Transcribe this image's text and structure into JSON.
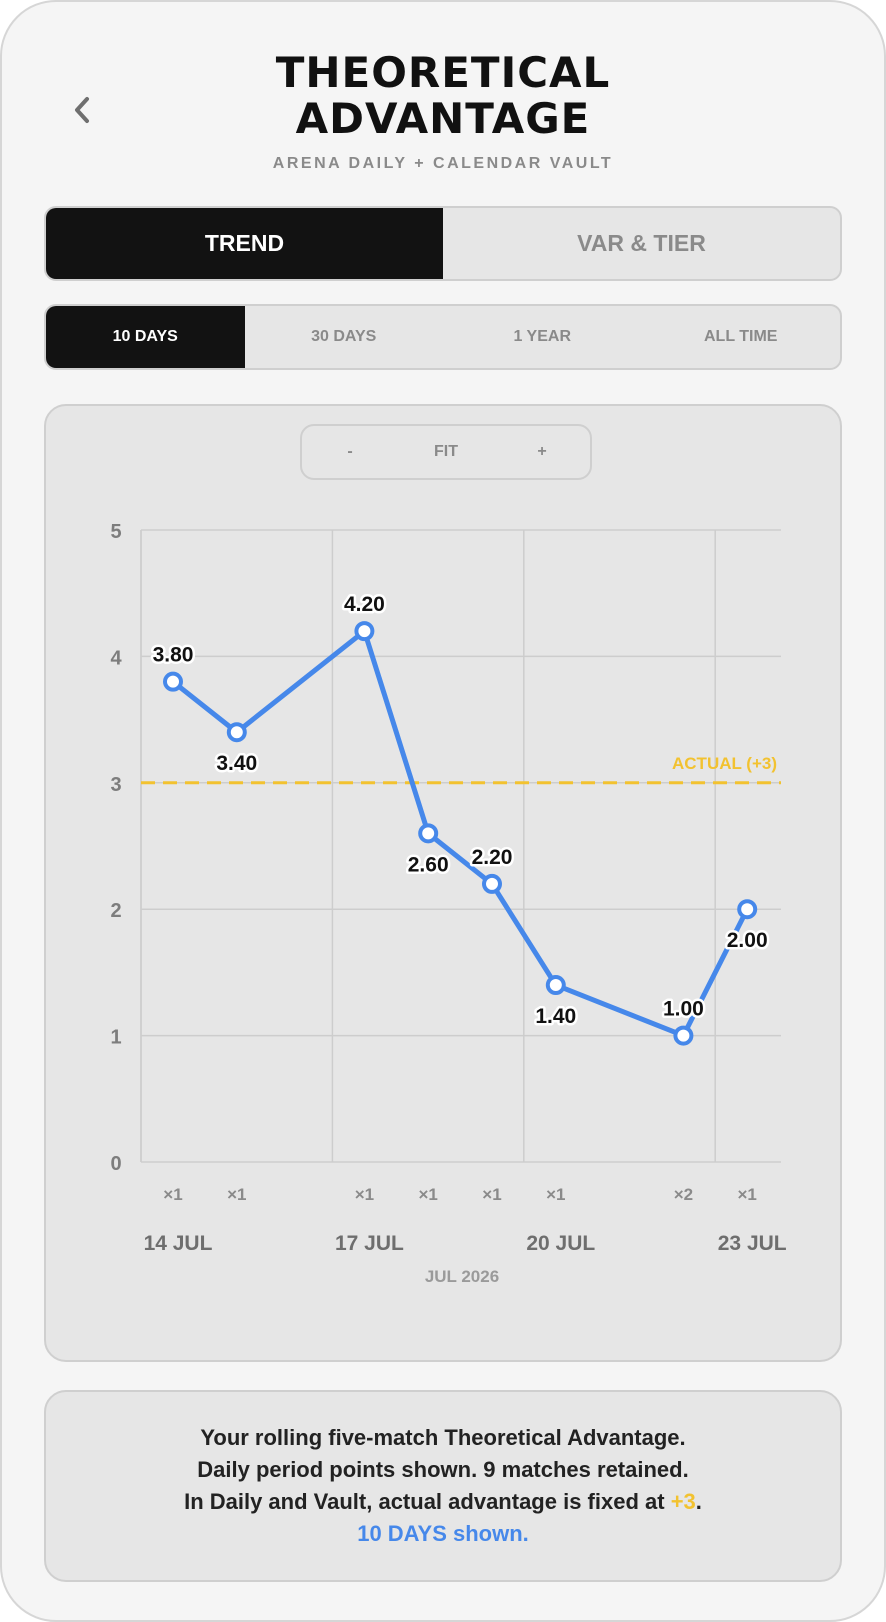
{
  "header": {
    "title_line1": "THEORETICAL",
    "title_line2": "ADVANTAGE",
    "subtitle": "ARENA DAILY + CALENDAR VAULT",
    "back_icon": "chevron-left-icon"
  },
  "view_tabs": [
    {
      "label": "TREND",
      "active": true
    },
    {
      "label": "VAR & TIER",
      "active": false
    }
  ],
  "range_tabs": [
    {
      "label": "10 DAYS",
      "active": true
    },
    {
      "label": "30 DAYS",
      "active": false
    },
    {
      "label": "1 YEAR",
      "active": false
    },
    {
      "label": "ALL TIME",
      "active": false
    }
  ],
  "zoom": {
    "minus": "-",
    "fit": "FIT",
    "plus": "+"
  },
  "colors": {
    "line": "#4688ea",
    "actual_line": "#f2c230",
    "active_tab": "#121212",
    "card": "#e6e6e6"
  },
  "chart_data": {
    "type": "line",
    "ylim": [
      0,
      5
    ],
    "yticks": [
      0,
      1,
      2,
      3,
      4,
      5
    ],
    "x_date_labels": [
      "14 JUL",
      "17 JUL",
      "20 JUL",
      "23 JUL"
    ],
    "x_period_label": "JUL 2026",
    "reference_line": {
      "value": 3,
      "label": "ACTUAL (+3)"
    },
    "points": [
      {
        "date": "2026-07-14",
        "value": 3.8,
        "label": "3.80",
        "count": "×1"
      },
      {
        "date": "2026-07-15",
        "value": 3.4,
        "label": "3.40",
        "count": "×1"
      },
      {
        "date": "2026-07-17",
        "value": 4.2,
        "label": "4.20",
        "count": "×1"
      },
      {
        "date": "2026-07-18",
        "value": 2.6,
        "label": "2.60",
        "count": "×1"
      },
      {
        "date": "2026-07-19",
        "value": 2.2,
        "label": "2.20",
        "count": "×1"
      },
      {
        "date": "2026-07-20",
        "value": 1.4,
        "label": "1.40",
        "count": "×1"
      },
      {
        "date": "2026-07-22",
        "value": 1.0,
        "label": "1.00",
        "count": "×2"
      },
      {
        "date": "2026-07-23",
        "value": 2.0,
        "label": "2.00",
        "count": "×1"
      }
    ],
    "grid": true
  },
  "info": {
    "line1": "Your rolling five-match Theoretical Advantage.",
    "line2": "Daily period points shown. 9 matches retained.",
    "line3_prefix": "In Daily and Vault, actual advantage is fixed at ",
    "line3_value": "+3",
    "line3_suffix": ".",
    "line4": "10 DAYS shown."
  }
}
